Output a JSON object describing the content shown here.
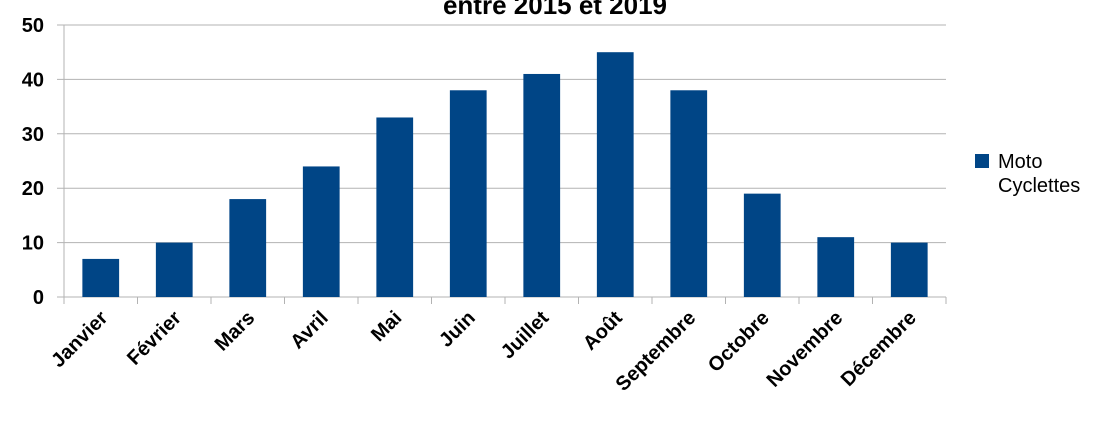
{
  "chart_data": {
    "type": "bar",
    "title": "entre 2015 et 2019",
    "categories": [
      "Janvier",
      "Février",
      "Mars",
      "Avril",
      "Mai",
      "Juin",
      "Juillet",
      "Août",
      "Septembre",
      "Octobre",
      "Novembre",
      "Décembre"
    ],
    "series": [
      {
        "name": "Moto Cyclettes",
        "color": "#004586",
        "values": [
          7,
          10,
          18,
          24,
          33,
          38,
          41,
          45,
          38,
          19,
          11,
          10
        ]
      }
    ],
    "ylim": [
      0,
      50
    ],
    "yticks": [
      0,
      10,
      20,
      30,
      40,
      50
    ],
    "grid": true,
    "legend": "right"
  }
}
